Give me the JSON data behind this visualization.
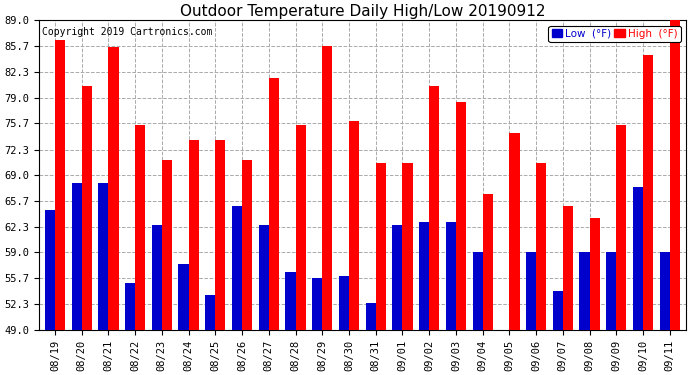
{
  "title": "Outdoor Temperature Daily High/Low 20190912",
  "copyright": "Copyright 2019 Cartronics.com",
  "legend_low": "Low  (°F)",
  "legend_high": "High  (°F)",
  "dates": [
    "08/19",
    "08/20",
    "08/21",
    "08/22",
    "08/23",
    "08/24",
    "08/25",
    "08/26",
    "08/27",
    "08/28",
    "08/29",
    "08/30",
    "08/31",
    "09/01",
    "09/02",
    "09/03",
    "09/04",
    "09/05",
    "09/06",
    "09/07",
    "09/08",
    "09/09",
    "09/10",
    "09/11"
  ],
  "highs": [
    86.5,
    80.5,
    85.5,
    75.5,
    71.0,
    73.5,
    73.5,
    71.0,
    81.5,
    75.5,
    85.7,
    76.0,
    70.5,
    70.5,
    80.5,
    78.5,
    66.5,
    74.5,
    70.5,
    65.0,
    63.5,
    75.5,
    84.5,
    89.0
  ],
  "lows": [
    64.5,
    68.0,
    68.0,
    55.0,
    62.5,
    57.5,
    53.5,
    65.0,
    62.5,
    56.5,
    55.7,
    56.0,
    52.5,
    62.5,
    63.0,
    63.0,
    59.0,
    49.0,
    59.0,
    54.0,
    59.0,
    59.0,
    67.5,
    59.0
  ],
  "high_color": "#ff0000",
  "low_color": "#0000cc",
  "ylim_min": 49.0,
  "ylim_max": 89.0,
  "yticks": [
    49.0,
    52.3,
    55.7,
    59.0,
    62.3,
    65.7,
    69.0,
    72.3,
    75.7,
    79.0,
    82.3,
    85.7,
    89.0
  ],
  "background_color": "#ffffff",
  "plot_bg_color": "#ffffff",
  "grid_color": "#aaaaaa",
  "title_fontsize": 11,
  "tick_fontsize": 7.5,
  "bar_width": 0.38
}
